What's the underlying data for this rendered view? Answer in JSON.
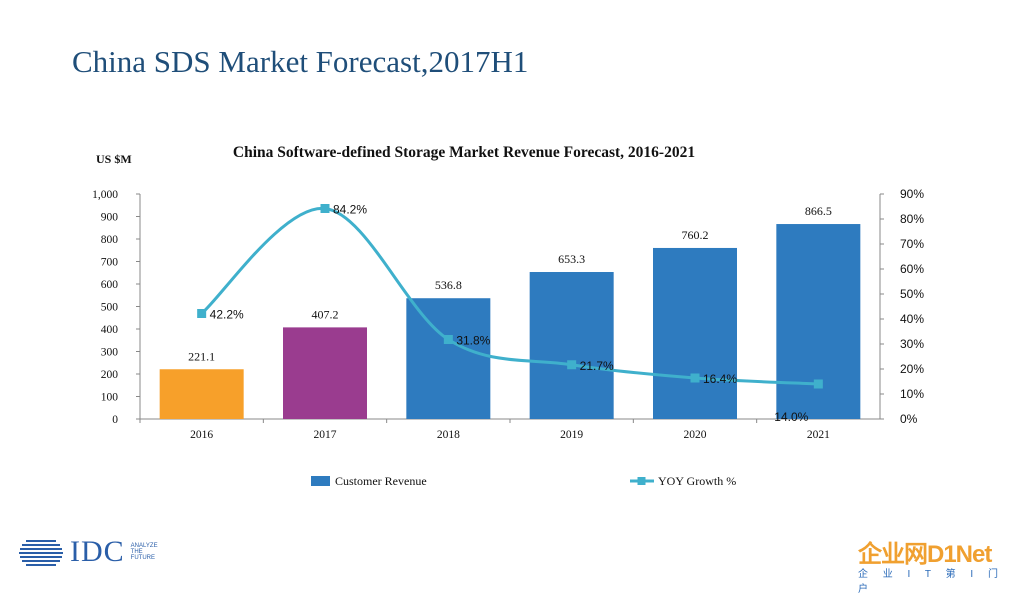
{
  "slide": {
    "title": "China SDS Market Forecast,2017H1",
    "logo_text": "IDC",
    "logo_tagline": "ANALYZE\nTHE\nFUTURE",
    "watermark": "企业网D1Net",
    "watermark_sub": "企 业 I T 第 I 门 户"
  },
  "chart_data": {
    "type": "bar",
    "title": "China Software-defined Storage Market Revenue Forecast, 2016-2021",
    "ylabel": "US $M",
    "categories": [
      "2016",
      "2017",
      "2018",
      "2019",
      "2020",
      "2021"
    ],
    "series": [
      {
        "name": "Customer Revenue",
        "type": "bar",
        "values": [
          221.1,
          407.2,
          536.8,
          653.3,
          760.2,
          866.5
        ],
        "value_labels": [
          "221.1",
          "407.2",
          "536.8",
          "653.3",
          "760.2",
          "866.5"
        ],
        "colors": [
          "#f7a02a",
          "#9a3c8f",
          "#2e7bbf",
          "#2e7bbf",
          "#2e7bbf",
          "#2e7bbf"
        ],
        "color": "#2e7bbf"
      },
      {
        "name": "YOY Growth %",
        "type": "line",
        "axis": "right",
        "values": [
          42.2,
          84.2,
          31.8,
          21.7,
          16.4,
          14.0
        ],
        "value_labels": [
          "42.2%",
          "84.2%",
          "31.8%",
          "21.7%",
          "16.4%",
          "14.0%"
        ],
        "color": "#3fb0cc"
      }
    ],
    "y_left": {
      "range": [
        0,
        1000
      ],
      "ticks": [
        "0",
        "100",
        "200",
        "300",
        "400",
        "500",
        "600",
        "700",
        "800",
        "900",
        "1,000"
      ]
    },
    "y_right": {
      "range": [
        0,
        90
      ],
      "ticks": [
        "0%",
        "10%",
        "20%",
        "30%",
        "40%",
        "50%",
        "60%",
        "70%",
        "80%",
        "90%"
      ]
    },
    "legend": "bottom",
    "grid": false
  }
}
